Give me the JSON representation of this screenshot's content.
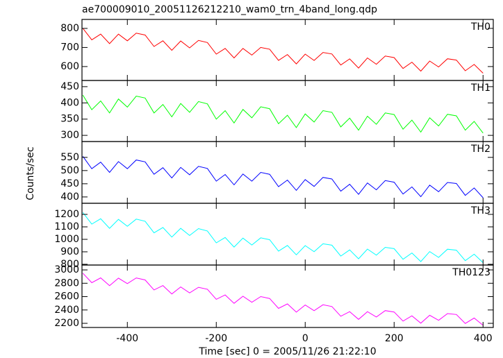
{
  "chart_data": {
    "type": "line",
    "title": "ae700009010_20051126212210_wam0_trn_4band_long.qdp",
    "xlabel": "Time [sec] 0 = 2005/11/26 21:22:10",
    "ylabel": "Counts/sec",
    "xlim": [
      -502,
      423
    ],
    "xticks": [
      -400,
      -200,
      0,
      200,
      400
    ],
    "x": [
      -500,
      -480,
      -460,
      -440,
      -420,
      -400,
      -380,
      -360,
      -340,
      -320,
      -300,
      -280,
      -260,
      -240,
      -220,
      -200,
      -180,
      -160,
      -140,
      -120,
      -100,
      -80,
      -60,
      -40,
      -20,
      0,
      20,
      40,
      60,
      80,
      100,
      120,
      140,
      160,
      180,
      200,
      220,
      240,
      260,
      280,
      300,
      320,
      340,
      360,
      380,
      400
    ],
    "panels": [
      {
        "name": "TH0",
        "color": "#ff0000",
        "ylim": [
          527,
          847
        ],
        "yticks": [
          600,
          700,
          800
        ],
        "values": [
          800,
          740,
          770,
          720,
          770,
          735,
          775,
          765,
          705,
          735,
          685,
          734,
          698,
          737,
          726,
          665,
          695,
          645,
          695,
          660,
          700,
          691,
          632,
          663,
          614,
          665,
          632,
          674,
          666,
          608,
          640,
          592,
          645,
          612,
          655,
          647,
          590,
          623,
          576,
          629,
          598,
          641,
          634,
          578,
          611,
          565
        ]
      },
      {
        "name": "TH1",
        "color": "#00ff00",
        "ylim": [
          281,
          469
        ],
        "yticks": [
          300,
          350,
          400,
          450
        ],
        "values": [
          424,
          379,
          406,
          369,
          412,
          387,
          421,
          415,
          369,
          395,
          357,
          398,
          371,
          404,
          397,
          350,
          376,
          338,
          380,
          354,
          388,
          382,
          336,
          362,
          324,
          366,
          341,
          376,
          371,
          326,
          353,
          316,
          359,
          334,
          369,
          364,
          319,
          347,
          310,
          354,
          329,
          365,
          360,
          316,
          343,
          307
        ]
      },
      {
        "name": "TH2",
        "color": "#0000ff",
        "ylim": [
          376,
          610
        ],
        "yticks": [
          400,
          450,
          500,
          550
        ],
        "values": [
          554,
          507,
          532,
          493,
          534,
          507,
          540,
          533,
          486,
          511,
          472,
          512,
          484,
          516,
          508,
          460,
          485,
          446,
          487,
          460,
          493,
          486,
          439,
          464,
          425,
          466,
          440,
          474,
          468,
          422,
          448,
          410,
          453,
          427,
          462,
          456,
          411,
          438,
          401,
          445,
          420,
          455,
          451,
          406,
          434,
          397
        ]
      },
      {
        "name": "TH3",
        "color": "#00ffff",
        "ylim": [
          794,
          1289
        ],
        "yticks": [
          800,
          900,
          1000,
          1100,
          1200
        ],
        "values": [
          1215,
          1122,
          1165,
          1088,
          1160,
          1105,
          1162,
          1145,
          1052,
          1095,
          1018,
          1088,
          1031,
          1086,
          1067,
          972,
          1015,
          938,
          1010,
          955,
          1012,
          997,
          906,
          951,
          876,
          950,
          901,
          964,
          953,
          866,
          915,
          844,
          922,
          873,
          936,
          925,
          840,
          891,
          822,
          902,
          855,
          921,
          913,
          829,
          881,
          813
        ]
      },
      {
        "name": "TH0123",
        "color": "#ff00ff",
        "ylim": [
          2138,
          3073
        ],
        "yticks": [
          2200,
          2400,
          2600,
          2800,
          3000
        ],
        "values": [
          2950,
          2808,
          2881,
          2764,
          2877,
          2795,
          2880,
          2850,
          2700,
          2765,
          2640,
          2745,
          2655,
          2740,
          2710,
          2560,
          2625,
          2500,
          2605,
          2515,
          2600,
          2572,
          2424,
          2491,
          2368,
          2475,
          2389,
          2478,
          2452,
          2306,
          2375,
          2260,
          2375,
          2295,
          2390,
          2370,
          2234,
          2313,
          2202,
          2321,
          2245,
          2346,
          2332,
          2198,
          2279,
          2170
        ]
      }
    ]
  }
}
